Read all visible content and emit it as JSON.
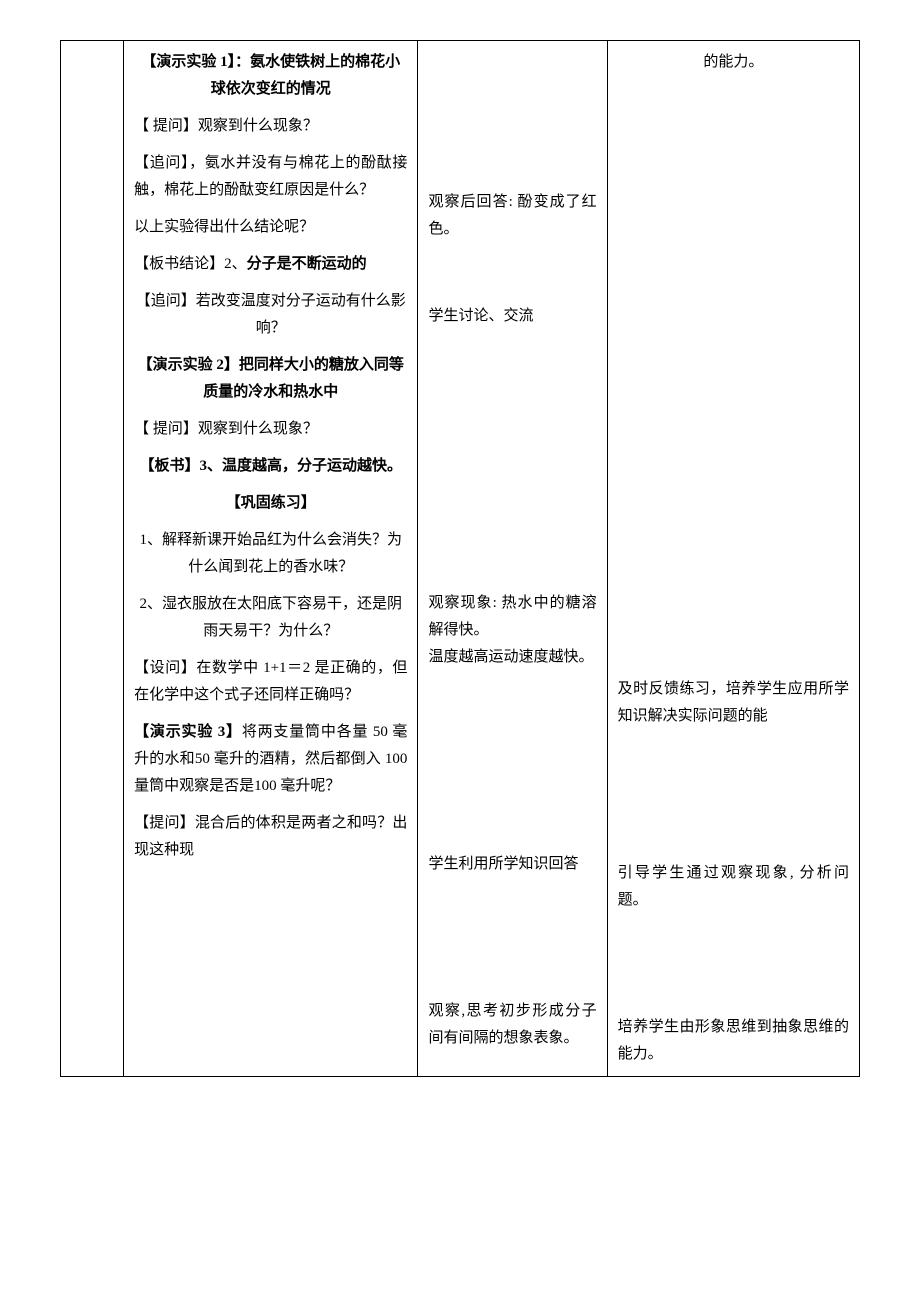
{
  "col2": {
    "exp1_title": "【演示实验 1】：氨水使铁树上的棉花小球依次变红的情况",
    "q1": "【 提问】观察到什么现象？",
    "follow1": "【追问】，氨水并没有与棉花上的酚酞接触，棉花上的酚酞变红原因是什么？",
    "conclusion_q": "以上实验得出什么结论呢？",
    "board2_prefix": "【板书结论】2、",
    "board2_bold": "分子是不断运动的",
    "follow2": "【追问】若改变温度对分子运动有什么影响？",
    "exp2_title": "【演示实验 2】把同样大小的糖放入同等质量的冷水和热水中",
    "q2": "【 提问】观察到什么现象？",
    "board3_prefix": "【板书】3、",
    "board3_bold": "温度越高，分子运动越快。",
    "practice_title": "【巩固练习】",
    "practice1": "1、解释新课开始品红为什么会消失？为什么闻到花上的香水味？",
    "practice2": "2、湿衣服放在太阳底下容易干，还是阴雨天易干？为什么？",
    "setq": "【设问】在数学中 1+1＝2 是正确的，但在化学中这个式子还同样正确吗？",
    "exp3_title": "【演示实验 3】将两支量筒中各量 50 毫升的水和50 毫升的酒精，然后都倒入 100 量筒中观察是否是100 毫升呢？",
    "q3": "【提问】混合后的体积是两者之和吗？出现这种现"
  },
  "col3": {
    "ans1": "观察后回答: 酚变成了红色。",
    "discuss": "学生讨论、交流",
    "hot1": "观察现象: 热水中的糖溶解得快。",
    "hot2": "温度越高运动速度越快。",
    "use_knowledge": "学生利用所学知识回答",
    "observe_think": "观察,思考初步形成分子间有间隔的想象表象。"
  },
  "col4": {
    "top": "的能力。",
    "feedback": "及时反馈练习，培养学生应用所学知识解决实际问题的能",
    "guide": "引导学生通过观察现象, 分析问题。",
    "thinking": "培养学生由形象思维到抽象思维的能力。"
  }
}
